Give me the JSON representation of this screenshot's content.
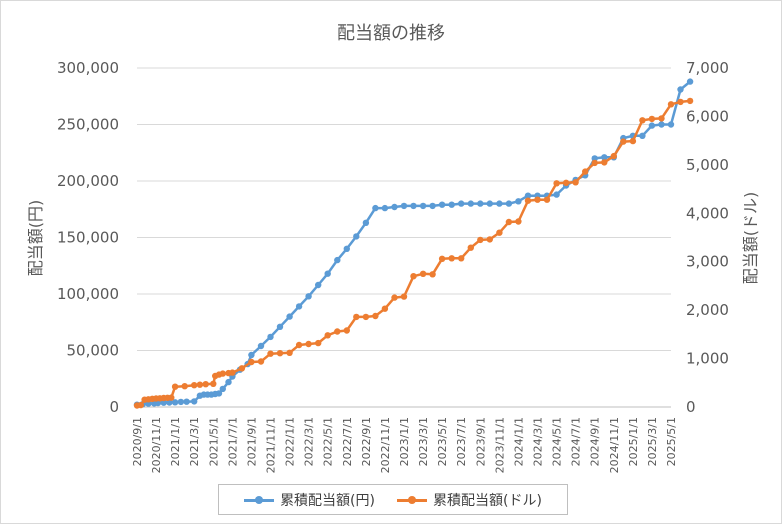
{
  "chart_data": {
    "type": "line",
    "title": "配当額の推移",
    "ylabel": "配当額(円)",
    "y2label": "配当額(ドル)",
    "ylim": [
      0,
      300000
    ],
    "y2lim": [
      0,
      7000
    ],
    "yticks": [
      "0",
      "50,000",
      "100,000",
      "150,000",
      "200,000",
      "250,000",
      "300,000"
    ],
    "y2ticks": [
      "0",
      "1,000",
      "2,000",
      "3,000",
      "4,000",
      "5,000",
      "6,000",
      "7,000"
    ],
    "xticks": [
      "2020/9/1",
      "2020/11/1",
      "2021/1/1",
      "2021/3/1",
      "2021/5/1",
      "2021/7/1",
      "2021/9/1",
      "2021/11/1",
      "2022/1/1",
      "2022/3/1",
      "2022/5/1",
      "2022/7/1",
      "2022/9/1",
      "2022/11/1",
      "2023/1/1",
      "2023/3/1",
      "2023/5/1",
      "2023/7/1",
      "2023/9/1",
      "2023/11/1",
      "2024/1/1",
      "2024/3/1",
      "2024/5/1",
      "2024/7/1",
      "2024/9/1",
      "2024/11/1",
      "2025/1/1",
      "2025/3/1",
      "2025/5/1"
    ],
    "grid": true,
    "legend_position": "bottom",
    "series": [
      {
        "name": "累積配当額(円)",
        "axis": "left",
        "color": "#5b9bd5",
        "points": [
          [
            0,
            2000
          ],
          [
            0.3,
            2500
          ],
          [
            0.6,
            3000
          ],
          [
            0.9,
            3200
          ],
          [
            1.1,
            3500
          ],
          [
            1.4,
            3800
          ],
          [
            1.7,
            4000
          ],
          [
            2.0,
            4200
          ],
          [
            2.3,
            4500
          ],
          [
            2.6,
            4700
          ],
          [
            3.0,
            5000
          ],
          [
            3.3,
            10000
          ],
          [
            3.5,
            11000
          ],
          [
            3.7,
            11000
          ],
          [
            3.9,
            11000
          ],
          [
            4.1,
            11500
          ],
          [
            4.3,
            12000
          ],
          [
            4.5,
            16000
          ],
          [
            4.8,
            22000
          ],
          [
            5.0,
            27000
          ],
          [
            5.4,
            33000
          ],
          [
            5.8,
            38000
          ],
          [
            6.0,
            46000
          ],
          [
            6.5,
            54000
          ],
          [
            7.0,
            62000
          ],
          [
            7.5,
            71000
          ],
          [
            8.0,
            80000
          ],
          [
            8.5,
            89000
          ],
          [
            9.0,
            98000
          ],
          [
            9.5,
            108000
          ],
          [
            10.0,
            118000
          ],
          [
            10.5,
            130000
          ],
          [
            11.0,
            140000
          ],
          [
            11.5,
            151000
          ],
          [
            12.0,
            163000
          ],
          [
            12.5,
            176000
          ],
          [
            13.0,
            176000
          ],
          [
            13.5,
            177000
          ],
          [
            14.0,
            178000
          ],
          [
            14.5,
            178000
          ],
          [
            15.0,
            178000
          ],
          [
            15.5,
            178000
          ],
          [
            16.0,
            179000
          ],
          [
            16.5,
            179000
          ],
          [
            17.0,
            180000
          ],
          [
            17.5,
            180000
          ],
          [
            18.0,
            180000
          ],
          [
            18.5,
            180000
          ],
          [
            19.0,
            180000
          ],
          [
            19.5,
            180000
          ],
          [
            20.0,
            182000
          ],
          [
            20.5,
            187000
          ],
          [
            21.0,
            187000
          ],
          [
            21.5,
            187000
          ],
          [
            22.0,
            188000
          ],
          [
            22.5,
            196000
          ],
          [
            23.0,
            201000
          ],
          [
            23.5,
            205000
          ],
          [
            24.0,
            220000
          ],
          [
            24.5,
            221000
          ],
          [
            25.0,
            221000
          ],
          [
            25.5,
            238000
          ],
          [
            26.0,
            240000
          ],
          [
            26.5,
            240000
          ],
          [
            27.0,
            249000
          ],
          [
            27.5,
            250000
          ],
          [
            28.0,
            250000
          ],
          [
            28.5,
            281000
          ],
          [
            29.0,
            288000
          ]
        ]
      },
      {
        "name": "累積配当額(ドル)",
        "axis": "right",
        "color": "#ed7d31",
        "points": [
          [
            0,
            30
          ],
          [
            0.2,
            40
          ],
          [
            0.4,
            150
          ],
          [
            0.6,
            160
          ],
          [
            0.8,
            170
          ],
          [
            1.0,
            175
          ],
          [
            1.2,
            180
          ],
          [
            1.4,
            185
          ],
          [
            1.6,
            190
          ],
          [
            1.8,
            195
          ],
          [
            2.0,
            420
          ],
          [
            2.5,
            430
          ],
          [
            3.0,
            450
          ],
          [
            3.3,
            460
          ],
          [
            3.6,
            470
          ],
          [
            4.0,
            480
          ],
          [
            4.1,
            640
          ],
          [
            4.3,
            670
          ],
          [
            4.5,
            690
          ],
          [
            4.8,
            700
          ],
          [
            5.0,
            710
          ],
          [
            5.5,
            800
          ],
          [
            6.0,
            930
          ],
          [
            6.5,
            940
          ],
          [
            7.0,
            1100
          ],
          [
            7.5,
            1110
          ],
          [
            8.0,
            1120
          ],
          [
            8.5,
            1280
          ],
          [
            9.0,
            1300
          ],
          [
            9.5,
            1320
          ],
          [
            10.0,
            1480
          ],
          [
            10.5,
            1560
          ],
          [
            11.0,
            1580
          ],
          [
            11.5,
            1860
          ],
          [
            12.0,
            1860
          ],
          [
            12.5,
            1880
          ],
          [
            13.0,
            2030
          ],
          [
            13.5,
            2260
          ],
          [
            14.0,
            2280
          ],
          [
            14.5,
            2700
          ],
          [
            15.0,
            2750
          ],
          [
            15.5,
            2740
          ],
          [
            16.0,
            3060
          ],
          [
            16.5,
            3070
          ],
          [
            17.0,
            3070
          ],
          [
            17.5,
            3290
          ],
          [
            18.0,
            3450
          ],
          [
            18.5,
            3460
          ],
          [
            19.0,
            3600
          ],
          [
            19.5,
            3820
          ],
          [
            20.0,
            3830
          ],
          [
            20.5,
            4260
          ],
          [
            21.0,
            4280
          ],
          [
            21.5,
            4280
          ],
          [
            22.0,
            4620
          ],
          [
            22.5,
            4630
          ],
          [
            23.0,
            4640
          ],
          [
            23.5,
            4860
          ],
          [
            24.0,
            5040
          ],
          [
            24.5,
            5050
          ],
          [
            25.0,
            5180
          ],
          [
            25.5,
            5480
          ],
          [
            26.0,
            5490
          ],
          [
            26.5,
            5920
          ],
          [
            27.0,
            5950
          ],
          [
            27.5,
            5960
          ],
          [
            28.0,
            6250
          ],
          [
            28.5,
            6300
          ],
          [
            29.0,
            6320
          ]
        ]
      }
    ]
  }
}
